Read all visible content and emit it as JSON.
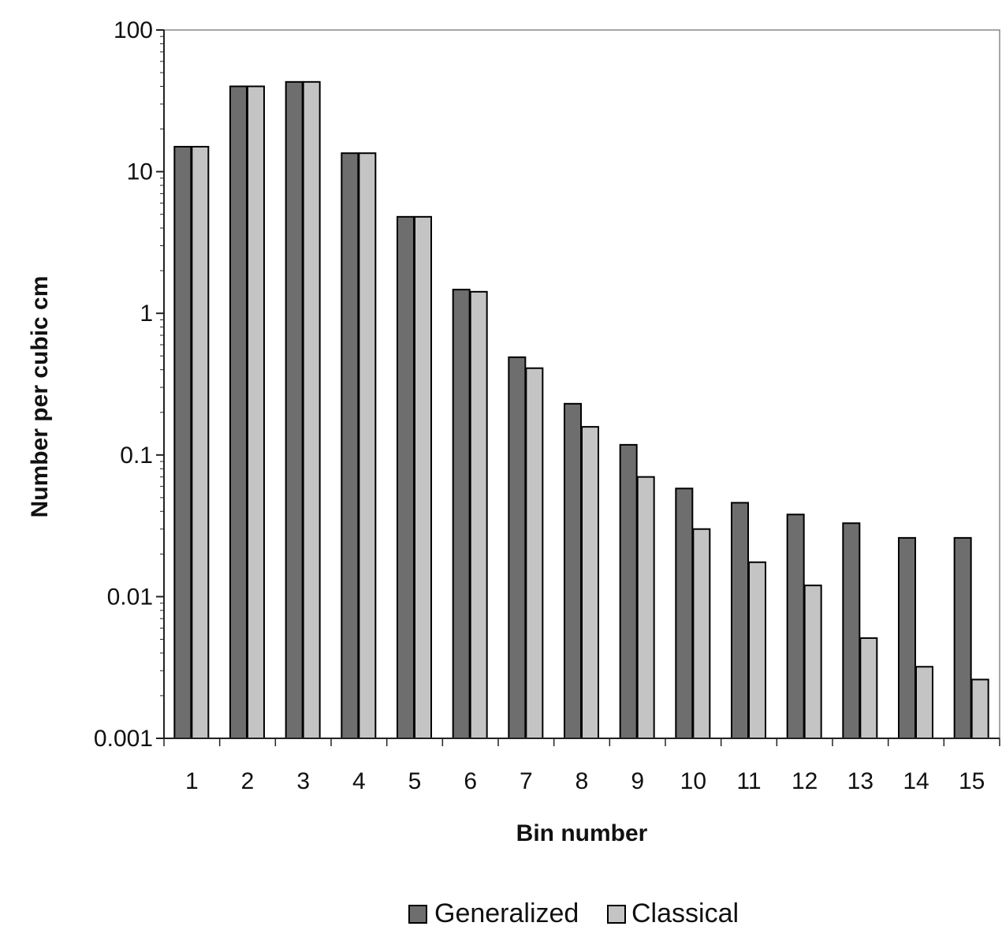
{
  "chart_data": {
    "type": "bar",
    "title": "",
    "xlabel": "Bin number",
    "ylabel": "Number per cubic cm",
    "yscale": "log",
    "ylim": [
      0.001,
      100
    ],
    "ytick_values": [
      0.001,
      0.01,
      0.1,
      1,
      10,
      100
    ],
    "ytick_labels": [
      "0.001",
      "0.01",
      "0.1",
      "1",
      "10",
      "100"
    ],
    "categories": [
      "1",
      "2",
      "3",
      "4",
      "5",
      "6",
      "7",
      "8",
      "9",
      "10",
      "11",
      "12",
      "13",
      "14",
      "15"
    ],
    "series": [
      {
        "name": "Generalized",
        "color": "#6e6e6e",
        "values": [
          15,
          40,
          43,
          13.5,
          4.8,
          1.47,
          0.49,
          0.23,
          0.118,
          0.058,
          0.046,
          0.038,
          0.033,
          0.026,
          0.026
        ]
      },
      {
        "name": "Classical",
        "color": "#c4c4c4",
        "values": [
          15,
          40,
          43,
          13.5,
          4.8,
          1.42,
          0.41,
          0.158,
          0.07,
          0.03,
          0.0175,
          0.012,
          0.0051,
          0.0032,
          0.0026
        ]
      }
    ],
    "grid": false,
    "legend": {
      "position": "bottom-center",
      "entries": [
        "Generalized",
        "Classical"
      ]
    },
    "colors": {
      "axis": "#222222",
      "bar_outline": "#000000",
      "plot_border": "#888888"
    }
  }
}
